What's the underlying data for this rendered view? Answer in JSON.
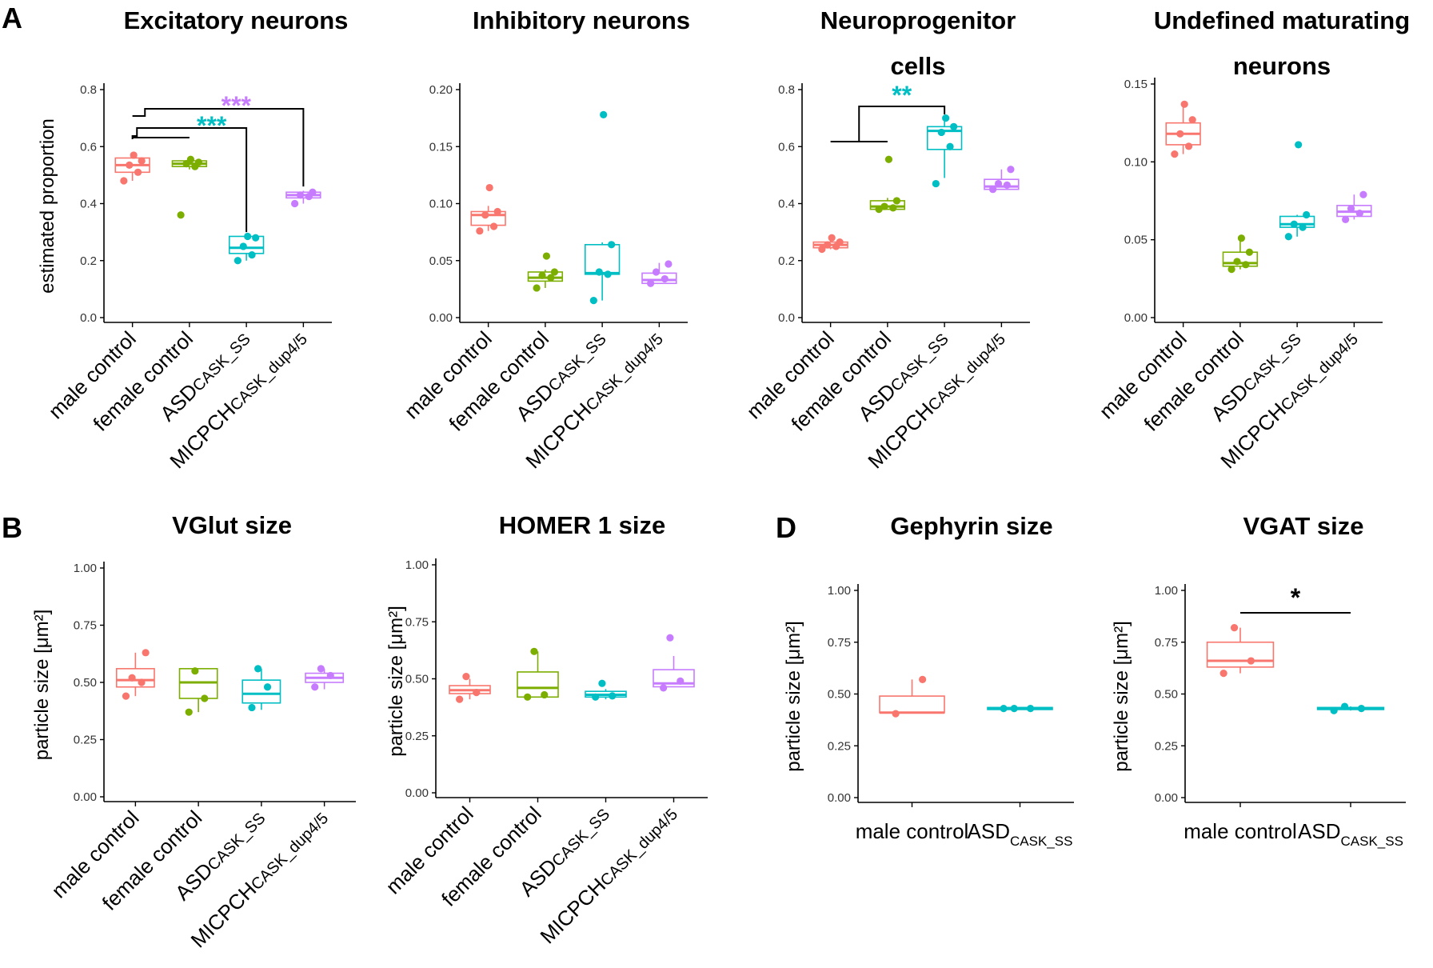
{
  "panel_labels": [
    "A",
    "B",
    "D"
  ],
  "colors": {
    "male control": "#F8766D",
    "female control": "#7CAE00",
    "ASD": "#00BFC4",
    "MICPCH": "#C77CFF",
    "axis": "#000000"
  },
  "chart_data": [
    {
      "id": "exc",
      "type": "box",
      "title": [
        "Excitatory neurons"
      ],
      "ylabel": "estimated proportion",
      "ylim": [
        0,
        0.8
      ],
      "yticks": [
        "0.0",
        "0.2",
        "0.4",
        "0.6",
        "0.8"
      ],
      "groups": [
        {
          "label": "male control",
          "sub": "",
          "color": "#F8766D",
          "q1": 0.51,
          "median": 0.535,
          "q3": 0.56,
          "wlow": 0.48,
          "whigh": 0.575,
          "points": [
            0.48,
            0.51,
            0.535,
            0.55,
            0.57
          ]
        },
        {
          "label": "female control",
          "sub": "",
          "color": "#7CAE00",
          "q1": 0.53,
          "median": 0.54,
          "q3": 0.55,
          "wlow": 0.52,
          "whigh": 0.56,
          "points": [
            0.36,
            0.53,
            0.54,
            0.545,
            0.555
          ]
        },
        {
          "label": "ASD",
          "sub": "CASK_SS",
          "color": "#00BFC4",
          "q1": 0.225,
          "median": 0.245,
          "q3": 0.285,
          "wlow": 0.2,
          "whigh": 0.29,
          "points": [
            0.2,
            0.22,
            0.25,
            0.28,
            0.285
          ]
        },
        {
          "label": "MICPCH",
          "sub": "CASK_dup4/5",
          "color": "#C77CFF",
          "q1": 0.42,
          "median": 0.43,
          "q3": 0.44,
          "wlow": 0.4,
          "whigh": 0.445,
          "points": [
            0.4,
            0.425,
            0.43,
            0.44
          ]
        }
      ],
      "annotations": [
        {
          "text": "***",
          "color": "#00BFC4",
          "target": 2
        },
        {
          "text": "***",
          "color": "#C77CFF",
          "target": 3
        }
      ]
    },
    {
      "id": "inh",
      "type": "box",
      "title": [
        "Inhibitory neurons"
      ],
      "ylabel": "",
      "ylim": [
        0,
        0.2
      ],
      "yticks": [
        "0.00",
        "0.05",
        "0.10",
        "0.15",
        "0.20"
      ],
      "groups": [
        {
          "label": "male control",
          "sub": "",
          "color": "#F8766D",
          "q1": 0.081,
          "median": 0.09,
          "q3": 0.093,
          "wlow": 0.076,
          "whigh": 0.098,
          "points": [
            0.076,
            0.08,
            0.09,
            0.093,
            0.114
          ]
        },
        {
          "label": "female control",
          "sub": "",
          "color": "#7CAE00",
          "q1": 0.032,
          "median": 0.035,
          "q3": 0.04,
          "wlow": 0.026,
          "whigh": 0.042,
          "points": [
            0.026,
            0.035,
            0.037,
            0.04,
            0.054
          ]
        },
        {
          "label": "ASD",
          "sub": "CASK_SS",
          "color": "#00BFC4",
          "q1": 0.038,
          "median": 0.039,
          "q3": 0.064,
          "wlow": 0.015,
          "whigh": 0.066,
          "points": [
            0.015,
            0.038,
            0.04,
            0.064,
            0.178
          ]
        },
        {
          "label": "MICPCH",
          "sub": "CASK_dup4/5",
          "color": "#C77CFF",
          "q1": 0.03,
          "median": 0.033,
          "q3": 0.039,
          "wlow": 0.03,
          "whigh": 0.048,
          "points": [
            0.03,
            0.034,
            0.04,
            0.047
          ]
        }
      ],
      "annotations": []
    },
    {
      "id": "npc",
      "type": "box",
      "title": [
        "Neuroprogenitor",
        "cells"
      ],
      "ylabel": "",
      "ylim": [
        0,
        0.8
      ],
      "yticks": [
        "0.0",
        "0.2",
        "0.4",
        "0.6",
        "0.8"
      ],
      "groups": [
        {
          "label": "male control",
          "sub": "",
          "color": "#F8766D",
          "q1": 0.245,
          "median": 0.255,
          "q3": 0.265,
          "wlow": 0.24,
          "whigh": 0.275,
          "points": [
            0.24,
            0.25,
            0.255,
            0.265,
            0.28
          ]
        },
        {
          "label": "female control",
          "sub": "",
          "color": "#7CAE00",
          "q1": 0.38,
          "median": 0.39,
          "q3": 0.41,
          "wlow": 0.38,
          "whigh": 0.42,
          "points": [
            0.38,
            0.385,
            0.39,
            0.41,
            0.555
          ]
        },
        {
          "label": "ASD",
          "sub": "CASK_SS",
          "color": "#00BFC4",
          "q1": 0.59,
          "median": 0.655,
          "q3": 0.67,
          "wlow": 0.49,
          "whigh": 0.7,
          "points": [
            0.47,
            0.6,
            0.65,
            0.67,
            0.7
          ]
        },
        {
          "label": "MICPCH",
          "sub": "CASK_dup4/5",
          "color": "#C77CFF",
          "q1": 0.45,
          "median": 0.46,
          "q3": 0.485,
          "wlow": 0.45,
          "whigh": 0.52,
          "points": [
            0.45,
            0.465,
            0.47,
            0.52
          ]
        }
      ],
      "annotations": [
        {
          "text": "**",
          "color": "#00BFC4",
          "target": 2
        }
      ]
    },
    {
      "id": "und",
      "type": "box",
      "title": [
        "Undefined maturating",
        "neurons"
      ],
      "ylabel": "",
      "ylim": [
        0,
        0.15
      ],
      "yticks": [
        "0.00",
        "0.05",
        "0.10",
        "0.15"
      ],
      "groups": [
        {
          "label": "male control",
          "sub": "",
          "color": "#F8766D",
          "q1": 0.111,
          "median": 0.118,
          "q3": 0.125,
          "wlow": 0.105,
          "whigh": 0.137,
          "points": [
            0.105,
            0.11,
            0.118,
            0.127,
            0.137
          ]
        },
        {
          "label": "female control",
          "sub": "",
          "color": "#7CAE00",
          "q1": 0.033,
          "median": 0.035,
          "q3": 0.042,
          "wlow": 0.031,
          "whigh": 0.051,
          "points": [
            0.031,
            0.034,
            0.036,
            0.042,
            0.051
          ]
        },
        {
          "label": "ASD",
          "sub": "CASK_SS",
          "color": "#00BFC4",
          "q1": 0.058,
          "median": 0.06,
          "q3": 0.065,
          "wlow": 0.052,
          "whigh": 0.066,
          "points": [
            0.052,
            0.058,
            0.06,
            0.066,
            0.111
          ]
        },
        {
          "label": "MICPCH",
          "sub": "CASK_dup4/5",
          "color": "#C77CFF",
          "q1": 0.065,
          "median": 0.068,
          "q3": 0.072,
          "wlow": 0.063,
          "whigh": 0.079,
          "points": [
            0.063,
            0.067,
            0.07,
            0.079
          ]
        }
      ],
      "annotations": []
    },
    {
      "id": "vglut",
      "type": "box",
      "title": [
        "VGlut size"
      ],
      "ylabel": "particle size [μm²]",
      "ylim": [
        0,
        1
      ],
      "yticks": [
        "0.00",
        "0.25",
        "0.50",
        "0.75",
        "1.00"
      ],
      "groups": [
        {
          "label": "male control",
          "sub": "",
          "color": "#F8766D",
          "q1": 0.48,
          "median": 0.51,
          "q3": 0.56,
          "wlow": 0.44,
          "whigh": 0.63,
          "points": [
            0.44,
            0.5,
            0.52,
            0.63
          ]
        },
        {
          "label": "female control",
          "sub": "",
          "color": "#7CAE00",
          "q1": 0.43,
          "median": 0.5,
          "q3": 0.56,
          "wlow": 0.37,
          "whigh": 0.56,
          "points": [
            0.37,
            0.43,
            0.55
          ]
        },
        {
          "label": "ASD",
          "sub": "CASK_SS",
          "color": "#00BFC4",
          "q1": 0.41,
          "median": 0.45,
          "q3": 0.51,
          "wlow": 0.38,
          "whigh": 0.56,
          "points": [
            0.39,
            0.48,
            0.56
          ]
        },
        {
          "label": "MICPCH",
          "sub": "CASK_dup4/5",
          "color": "#C77CFF",
          "q1": 0.5,
          "median": 0.52,
          "q3": 0.54,
          "wlow": 0.47,
          "whigh": 0.56,
          "points": [
            0.48,
            0.53,
            0.56
          ]
        }
      ],
      "annotations": []
    },
    {
      "id": "homer",
      "type": "box",
      "title": [
        "HOMER 1 size"
      ],
      "ylabel": "particle size [μm²]",
      "ylim": [
        0,
        1
      ],
      "yticks": [
        "0.00",
        "0.25",
        "0.50",
        "0.75",
        "1.00"
      ],
      "groups": [
        {
          "label": "male control",
          "sub": "",
          "color": "#F8766D",
          "q1": 0.435,
          "median": 0.45,
          "q3": 0.47,
          "wlow": 0.41,
          "whigh": 0.5,
          "points": [
            0.41,
            0.44,
            0.51
          ]
        },
        {
          "label": "female control",
          "sub": "",
          "color": "#7CAE00",
          "q1": 0.42,
          "median": 0.46,
          "q3": 0.53,
          "wlow": 0.42,
          "whigh": 0.62,
          "points": [
            0.42,
            0.43,
            0.62
          ]
        },
        {
          "label": "ASD",
          "sub": "CASK_SS",
          "color": "#00BFC4",
          "q1": 0.42,
          "median": 0.43,
          "q3": 0.445,
          "wlow": 0.41,
          "whigh": 0.455,
          "points": [
            0.42,
            0.425,
            0.48
          ]
        },
        {
          "label": "MICPCH",
          "sub": "CASK_dup4/5",
          "color": "#C77CFF",
          "q1": 0.465,
          "median": 0.48,
          "q3": 0.54,
          "wlow": 0.465,
          "whigh": 0.6,
          "points": [
            0.46,
            0.49,
            0.68
          ]
        }
      ],
      "annotations": []
    },
    {
      "id": "gephyrin",
      "type": "box",
      "title": [
        "Gephyrin size"
      ],
      "ylabel": "particle size [μm²]",
      "ylim": [
        0,
        1
      ],
      "yticks": [
        "0.00",
        "0.25",
        "0.50",
        "0.75",
        "1.00"
      ],
      "groups": [
        {
          "label": "male control",
          "sub": "",
          "color": "#F8766D",
          "q1": 0.41,
          "median": 0.41,
          "q3": 0.49,
          "wlow": 0.41,
          "whigh": 0.57,
          "points": [
            0.405,
            0.57
          ]
        },
        {
          "label": "ASD",
          "sub": "CASK_SS",
          "color": "#00BFC4",
          "q1": 0.425,
          "median": 0.43,
          "q3": 0.435,
          "wlow": 0.425,
          "whigh": 0.435,
          "points": [
            0.43,
            0.43,
            0.43
          ]
        }
      ],
      "annotations": []
    },
    {
      "id": "vgat",
      "type": "box",
      "title": [
        "VGAT size"
      ],
      "ylabel": "particle size [μm²]",
      "ylim": [
        0,
        1
      ],
      "yticks": [
        "0.00",
        "0.25",
        "0.50",
        "0.75",
        "1.00"
      ],
      "groups": [
        {
          "label": "male control",
          "sub": "",
          "color": "#F8766D",
          "q1": 0.63,
          "median": 0.66,
          "q3": 0.75,
          "wlow": 0.6,
          "whigh": 0.82,
          "points": [
            0.6,
            0.66,
            0.82
          ]
        },
        {
          "label": "ASD",
          "sub": "CASK_SS",
          "color": "#00BFC4",
          "q1": 0.425,
          "median": 0.43,
          "q3": 0.435,
          "wlow": 0.42,
          "whigh": 0.44,
          "points": [
            0.42,
            0.43,
            0.44
          ]
        }
      ],
      "annotations": [
        {
          "text": "*",
          "color": "#000000",
          "target": 1
        }
      ]
    }
  ]
}
